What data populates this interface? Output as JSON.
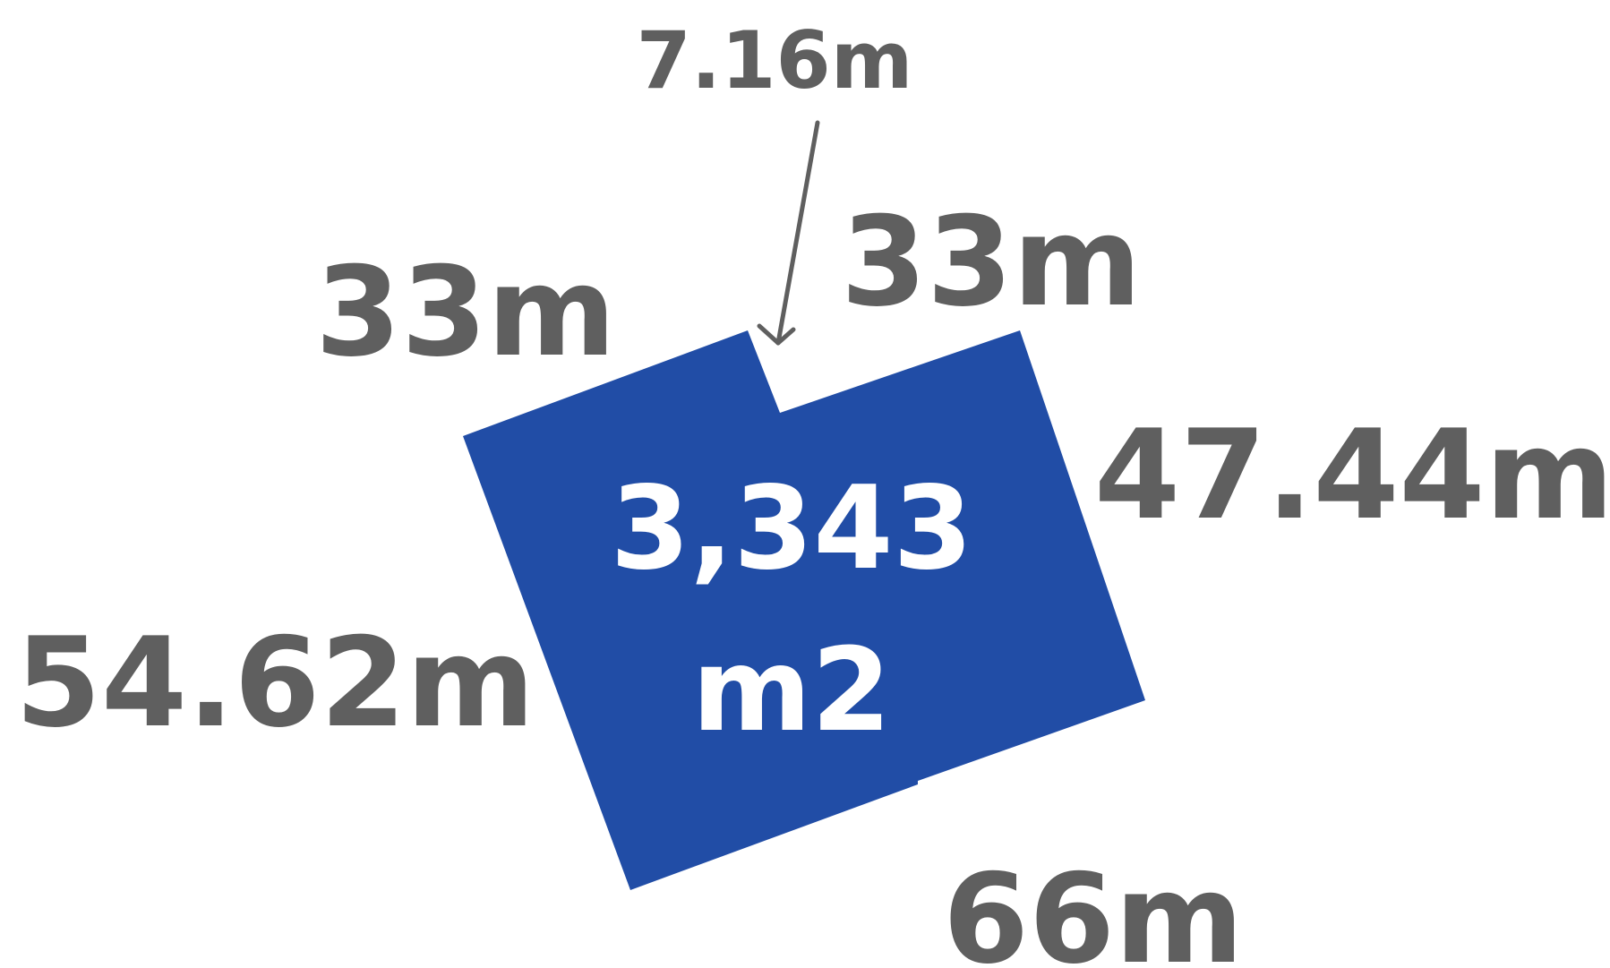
{
  "plot": {
    "area": "3,343",
    "area_unit": "m2",
    "fill_color": "#214da6"
  },
  "dimensions": {
    "top_notch": "7.16m",
    "top_left": "33m",
    "top_right": "33m",
    "right": "47.44m",
    "left": "54.62m",
    "bottom": "66m"
  },
  "colors": {
    "label": "#5f5f5f",
    "area_text": "#ffffff"
  }
}
